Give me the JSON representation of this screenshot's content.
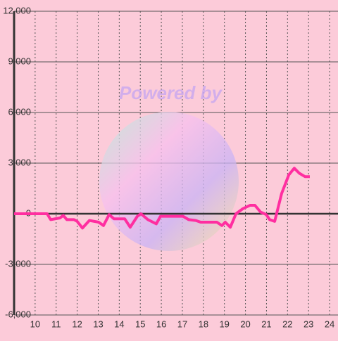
{
  "chart_data": {
    "type": "line",
    "watermark": "Powered by",
    "xlim": [
      9,
      24.4
    ],
    "xticks": [
      10,
      11,
      12,
      13,
      14,
      15,
      16,
      17,
      18,
      19,
      20,
      21,
      22,
      23,
      24
    ],
    "ylim": [
      -6000,
      12000
    ],
    "yticks": [
      {
        "value": -6000,
        "label": "-6,000"
      },
      {
        "value": -3000,
        "label": "-3,000"
      },
      0,
      {
        "value": 3000,
        "label": "3,000"
      },
      {
        "value": 6000,
        "label": "6,000"
      },
      {
        "value": 9000,
        "label": "9,000"
      },
      {
        "value": 12000,
        "label": "12,000"
      }
    ],
    "grid": true,
    "series": [
      {
        "color": "#ff2ea0",
        "x": [
          9.0,
          10.57,
          10.74,
          11.18,
          11.34,
          11.51,
          11.85,
          12.0,
          12.25,
          12.58,
          13.02,
          13.25,
          13.52,
          13.75,
          14.26,
          14.52,
          14.86,
          15.03,
          15.36,
          15.76,
          15.96,
          16.53,
          17.03,
          17.3,
          17.64,
          17.87,
          18.37,
          18.64,
          18.88,
          19.04,
          19.28,
          19.55,
          19.88,
          20.22,
          20.45,
          20.72,
          20.99,
          21.15,
          21.39,
          21.72,
          22.06,
          22.32,
          22.56,
          22.83,
          23.06
        ],
        "values": [
          0,
          0,
          -350,
          -250,
          -100,
          -350,
          -350,
          -450,
          -850,
          -400,
          -500,
          -700,
          -50,
          -300,
          -300,
          -800,
          -150,
          0,
          -350,
          -600,
          -150,
          -150,
          -150,
          -350,
          -400,
          -500,
          -500,
          -500,
          -700,
          -500,
          -800,
          0,
          300,
          500,
          500,
          100,
          -50,
          -350,
          -450,
          1200,
          2300,
          2700,
          2400,
          2200,
          2200
        ]
      }
    ]
  }
}
